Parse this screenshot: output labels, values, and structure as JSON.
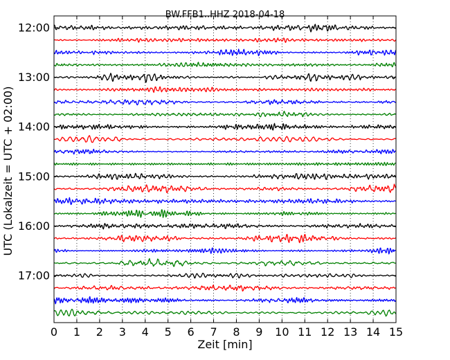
{
  "chart_data": {
    "type": "line",
    "title": "BW.FFB1..HHZ 2018-04-18",
    "xlabel": "Zeit  [min]",
    "ylabel": "UTC (Lokalzeit = UTC + 02:00)",
    "xlim": [
      0,
      15
    ],
    "x_ticks": [
      0,
      1,
      2,
      3,
      4,
      5,
      6,
      7,
      8,
      9,
      10,
      11,
      12,
      13,
      14,
      15
    ],
    "x_tick_labels": [
      "0",
      "1",
      "2",
      "3",
      "4",
      "5",
      "6",
      "7",
      "8",
      "9",
      "10",
      "11",
      "12",
      "13",
      "14",
      "15"
    ],
    "y_tick_labels": [
      "12:00",
      "13:00",
      "14:00",
      "15:00",
      "16:00",
      "17:00"
    ],
    "y_tick_rows": [
      0,
      4,
      8,
      12,
      16,
      20
    ],
    "trace_rows": 24,
    "trace_interval_minutes": 15,
    "trace_colors": [
      "#000000",
      "#ff0000",
      "#0000ff",
      "#008000"
    ],
    "grid": "vertical dotted at each minute",
    "signal": "seismic noise"
  }
}
